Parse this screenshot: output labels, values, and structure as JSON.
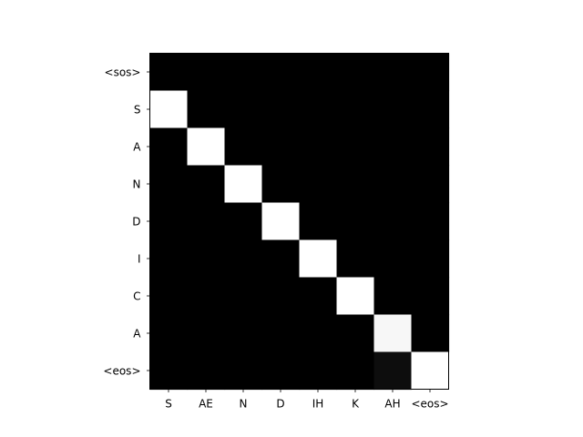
{
  "chart_data": {
    "type": "heatmap",
    "title": "",
    "xlabel": "",
    "ylabel": "",
    "x_labels": [
      "S",
      "AE",
      "N",
      "D",
      "IH",
      "K",
      "AH",
      "<eos>"
    ],
    "y_labels": [
      "<sos>",
      "S",
      "A",
      "N",
      "D",
      "I",
      "C",
      "A",
      "<eos>"
    ],
    "colormap": "gray",
    "color_range": [
      0,
      1
    ],
    "values": [
      [
        0,
        0,
        0,
        0,
        0,
        0,
        0,
        0
      ],
      [
        1,
        0,
        0,
        0,
        0,
        0,
        0,
        0
      ],
      [
        0,
        1,
        0,
        0,
        0,
        0,
        0,
        0
      ],
      [
        0,
        0,
        1,
        0,
        0,
        0,
        0,
        0
      ],
      [
        0,
        0,
        0,
        1,
        0,
        0,
        0,
        0
      ],
      [
        0,
        0,
        0,
        0,
        1,
        0,
        0,
        0
      ],
      [
        0,
        0,
        0,
        0,
        0,
        1,
        0,
        0
      ],
      [
        0,
        0,
        0,
        0,
        0,
        0,
        0.97,
        0
      ],
      [
        0,
        0,
        0,
        0,
        0,
        0,
        0.05,
        1
      ]
    ]
  }
}
